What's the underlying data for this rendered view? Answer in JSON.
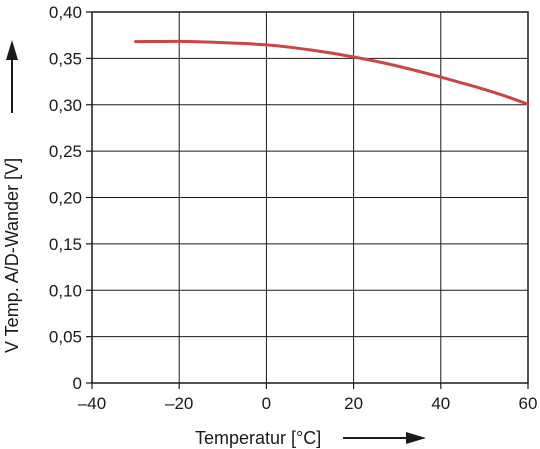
{
  "chart_data": {
    "type": "line",
    "title": "",
    "xlabel": "Temperatur [°C]",
    "ylabel": "V Temp. A/D-Wander [V]",
    "xlim": [
      -40,
      60
    ],
    "ylim": [
      0,
      0.4
    ],
    "x_ticks": [
      -40,
      -20,
      0,
      20,
      40,
      60
    ],
    "x_tick_labels": [
      "–40",
      "–20",
      "0",
      "20",
      "40",
      "60"
    ],
    "y_ticks": [
      0,
      0.05,
      0.1,
      0.15,
      0.2,
      0.25,
      0.3,
      0.35,
      0.4
    ],
    "y_tick_labels": [
      "0",
      "0,05",
      "0,10",
      "0,15",
      "0,20",
      "0,25",
      "0,30",
      "0,35",
      "0,40"
    ],
    "grid": true,
    "series": [
      {
        "color": "#cc4444",
        "x": [
          -30,
          -25,
          -20,
          -15,
          -10,
          -5,
          0,
          5,
          10,
          15,
          20,
          25,
          30,
          35,
          40,
          45,
          50,
          55,
          60
        ],
        "y": [
          0.368,
          0.3682,
          0.3683,
          0.3678,
          0.367,
          0.366,
          0.3645,
          0.3622,
          0.3592,
          0.3557,
          0.3515,
          0.347,
          0.3418,
          0.336,
          0.3298,
          0.3233,
          0.3165,
          0.309,
          0.3005
        ]
      }
    ]
  }
}
